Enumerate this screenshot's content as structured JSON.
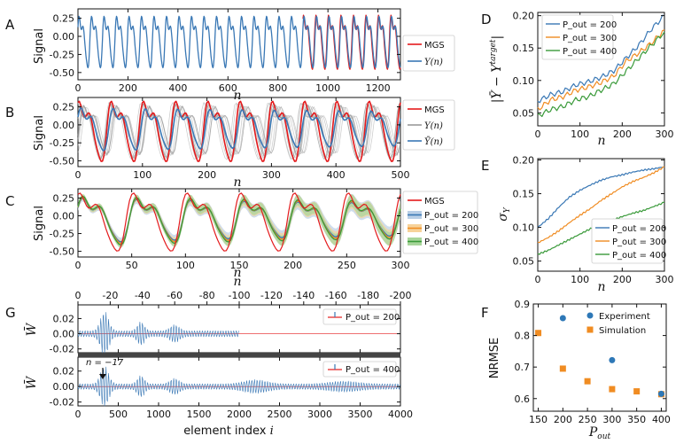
{
  "chart_data": [
    {
      "panel": "A",
      "type": "line",
      "xlabel": "n",
      "ylabel": "Signal",
      "xlim": [
        0,
        1290
      ],
      "ylim": [
        -0.6,
        0.38
      ],
      "xticks": [
        0,
        200,
        400,
        600,
        800,
        1000,
        1200
      ],
      "yticks": [
        0.25,
        0.0,
        -0.25,
        -0.5
      ],
      "series": [
        {
          "name": "MGS",
          "color": "#e41a1c",
          "period": 50,
          "amplitude": 0.38,
          "range": [
            900,
            1290
          ]
        },
        {
          "name": "Y(n)",
          "color": "#3a78b5",
          "period": 50,
          "amplitude": 0.38,
          "range": [
            0,
            1290
          ]
        }
      ],
      "legend": [
        "MGS",
        "Y(n)"
      ]
    },
    {
      "panel": "B",
      "type": "line",
      "xlabel": "n",
      "ylabel": "Signal",
      "xlim": [
        0,
        500
      ],
      "ylim": [
        -0.58,
        0.38
      ],
      "xticks": [
        0,
        100,
        200,
        300,
        400,
        500
      ],
      "yticks": [
        0.25,
        0.0,
        -0.25,
        -0.5
      ],
      "series": [
        {
          "name": "MGS",
          "color": "#e41a1c"
        },
        {
          "name": "Y(n)",
          "color": "#9a9a9a",
          "ensemble": 12
        },
        {
          "name": "Ȳ(n)",
          "color": "#3a78b5"
        }
      ],
      "legend": [
        "MGS",
        "Y(n)",
        "Ȳ(n)"
      ]
    },
    {
      "panel": "C",
      "type": "line",
      "xlabel": "n",
      "ylabel": "Signal",
      "xlim": [
        0,
        300
      ],
      "ylim": [
        -0.58,
        0.38
      ],
      "xticks": [
        0,
        50,
        100,
        150,
        200,
        250,
        300
      ],
      "yticks": [
        0.25,
        0.0,
        -0.25,
        -0.5
      ],
      "series": [
        {
          "name": "MGS",
          "color": "#e41a1c"
        },
        {
          "name": "P_out = 200",
          "color": "#3a78b5"
        },
        {
          "name": "P_out = 300",
          "color": "#f08c22"
        },
        {
          "name": "P_out = 400",
          "color": "#3a9a3a"
        }
      ],
      "legend": [
        "MGS",
        "P_out = 200",
        "P_out = 300",
        "P_out = 400"
      ]
    },
    {
      "panel": "D",
      "type": "line",
      "xlabel": "n",
      "ylabel": "|Ȳ − Y^target|",
      "xlim": [
        0,
        300
      ],
      "ylim": [
        0.03,
        0.205
      ],
      "xticks": [
        0,
        100,
        200,
        300
      ],
      "yticks": [
        0.05,
        0.1,
        0.15,
        0.2
      ],
      "series": [
        {
          "name": "P_out = 200",
          "color": "#3a78b5",
          "x": [
            0,
            30,
            60,
            90,
            120,
            150,
            180,
            210,
            240,
            270,
            300
          ],
          "values": [
            0.068,
            0.078,
            0.083,
            0.093,
            0.098,
            0.105,
            0.115,
            0.135,
            0.155,
            0.18,
            0.2
          ]
        },
        {
          "name": "P_out = 300",
          "color": "#f08c22",
          "x": [
            0,
            30,
            60,
            90,
            120,
            150,
            180,
            210,
            240,
            270,
            300
          ],
          "values": [
            0.055,
            0.07,
            0.075,
            0.085,
            0.09,
            0.097,
            0.107,
            0.13,
            0.143,
            0.158,
            0.178
          ]
        },
        {
          "name": "P_out = 400",
          "color": "#3a9a3a",
          "x": [
            0,
            30,
            60,
            90,
            120,
            150,
            180,
            210,
            240,
            270,
            300
          ],
          "values": [
            0.045,
            0.055,
            0.06,
            0.07,
            0.075,
            0.085,
            0.095,
            0.115,
            0.135,
            0.155,
            0.175
          ]
        }
      ],
      "legend": [
        "P_out = 200",
        "P_out = 300",
        "P_out = 400"
      ]
    },
    {
      "panel": "E",
      "type": "line",
      "xlabel": "n",
      "ylabel": "σ_Y",
      "xlim": [
        0,
        300
      ],
      "ylim": [
        0.035,
        0.202
      ],
      "xticks": [
        0,
        100,
        200,
        300
      ],
      "yticks": [
        0.05,
        0.1,
        0.15,
        0.2
      ],
      "series": [
        {
          "name": "P_out = 200",
          "color": "#3a78b5",
          "x": [
            0,
            25,
            50,
            75,
            100,
            125,
            150,
            175,
            200,
            225,
            250,
            275,
            300
          ],
          "values": [
            0.1,
            0.113,
            0.13,
            0.145,
            0.155,
            0.163,
            0.17,
            0.175,
            0.178,
            0.182,
            0.185,
            0.187,
            0.19
          ]
        },
        {
          "name": "P_out = 300",
          "color": "#f08c22",
          "x": [
            0,
            25,
            50,
            75,
            100,
            125,
            150,
            175,
            200,
            225,
            250,
            275,
            300
          ],
          "values": [
            0.077,
            0.085,
            0.095,
            0.107,
            0.118,
            0.128,
            0.14,
            0.15,
            0.16,
            0.168,
            0.174,
            0.181,
            0.19
          ]
        },
        {
          "name": "P_out = 400",
          "color": "#3a9a3a",
          "x": [
            0,
            25,
            50,
            75,
            100,
            125,
            150,
            175,
            200,
            225,
            250,
            275,
            300
          ],
          "values": [
            0.06,
            0.066,
            0.074,
            0.082,
            0.09,
            0.098,
            0.105,
            0.11,
            0.116,
            0.121,
            0.125,
            0.131,
            0.137
          ]
        }
      ],
      "legend": [
        "P_out = 200",
        "P_out = 300",
        "P_out = 400"
      ]
    },
    {
      "panel": "F",
      "type": "scatter",
      "xlabel": "P_out",
      "ylabel": "NRMSE",
      "xlim": [
        140,
        410
      ],
      "ylim": [
        0.56,
        0.9
      ],
      "xticks": [
        150,
        200,
        250,
        300,
        350,
        400
      ],
      "yticks": [
        0.6,
        0.7,
        0.8,
        0.9
      ],
      "series": [
        {
          "name": "Experiment",
          "color": "#2e78b7",
          "marker": "circle",
          "x": [
            200,
            300,
            400
          ],
          "values": [
            0.855,
            0.722,
            0.615
          ]
        },
        {
          "name": "Simulation",
          "color": "#f08c22",
          "marker": "square",
          "x": [
            150,
            200,
            250,
            300,
            350,
            400
          ],
          "values": [
            0.808,
            0.695,
            0.655,
            0.63,
            0.623,
            0.614
          ]
        }
      ],
      "legend": [
        "Experiment",
        "Simulation"
      ]
    },
    {
      "panel": "G",
      "type": "line",
      "xlabel": "element index i",
      "ylabel": "W̄_out^i",
      "xlim": [
        0,
        4000
      ],
      "xticks": [
        0,
        500,
        1000,
        1500,
        2000,
        2500,
        3000,
        3500,
        4000
      ],
      "top_xticks": [
        0,
        -20,
        -40,
        -60,
        -80,
        -100,
        -120,
        -140,
        -160,
        -180,
        -200
      ],
      "top_xlabel": "n",
      "subplots": [
        {
          "name": "P_out = 200",
          "ylim": [
            -0.025,
            0.038
          ],
          "yticks": [
            0.02,
            0.0,
            -0.02
          ],
          "range": [
            0,
            2000
          ],
          "color": "#3a78b5"
        },
        {
          "name": "P_out = 400",
          "ylim": [
            -0.025,
            0.038
          ],
          "yticks": [
            0.02,
            0.0,
            -0.02
          ],
          "range": [
            0,
            4000
          ],
          "color": "#3a78b5"
        }
      ],
      "annotation": "n = −17",
      "legend": [
        "P_out = 200",
        "P_out = 400"
      ]
    }
  ],
  "panel_letters": [
    "A",
    "B",
    "C",
    "D",
    "E",
    "F",
    "G"
  ],
  "labels": {
    "signal": "Signal",
    "n": "n",
    "mgs": "MGS",
    "yn": "Y(n)",
    "ybar": "Ȳ(n)",
    "p": "P",
    "out": "out",
    "p200": " = 200",
    "p300": " = 300",
    "p400": " = 400",
    "d_ylabel": "|Ȳ − Y",
    "d_target": "target",
    "e_ylabel": "σ",
    "e_sub": "Y",
    "f_ylabel": "NRMSE",
    "experiment": "Experiment",
    "simulation": "Simulation",
    "g_xlabel": "element index ",
    "g_i": "i",
    "g_ylabel": "W̄",
    "annotation": "n = −17"
  }
}
